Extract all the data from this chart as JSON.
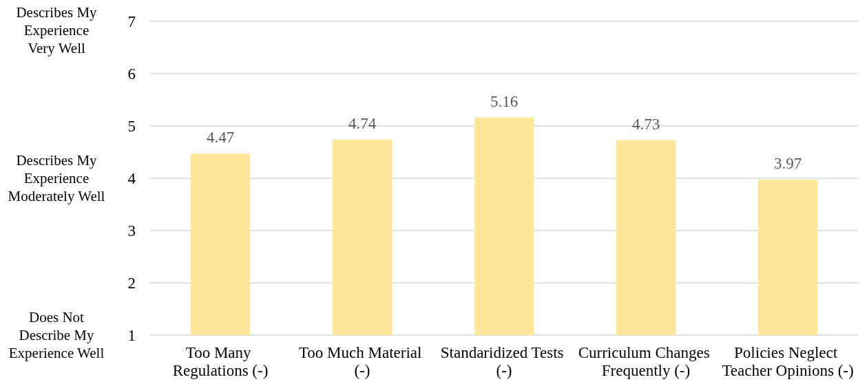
{
  "chart_data": {
    "type": "bar",
    "categories": [
      "Too Many Regulations (-)",
      "Too Much Material (-)",
      "Standaridized Tests (-)",
      "Curriculum Changes Frequently (-)",
      "Policies Neglect Teacher Opinions (-)"
    ],
    "values": [
      4.47,
      4.74,
      5.16,
      4.73,
      3.97
    ],
    "color": "#ffe699",
    "ylim": [
      1,
      7
    ],
    "yticks": [
      1,
      2,
      3,
      4,
      5,
      6,
      7
    ],
    "annotations": [
      "Describes My Experience Very Well",
      "Describes My Experience Moderately Well",
      "Does Not Describe My Experience Well"
    ],
    "grid": "y",
    "data_labels": true
  }
}
